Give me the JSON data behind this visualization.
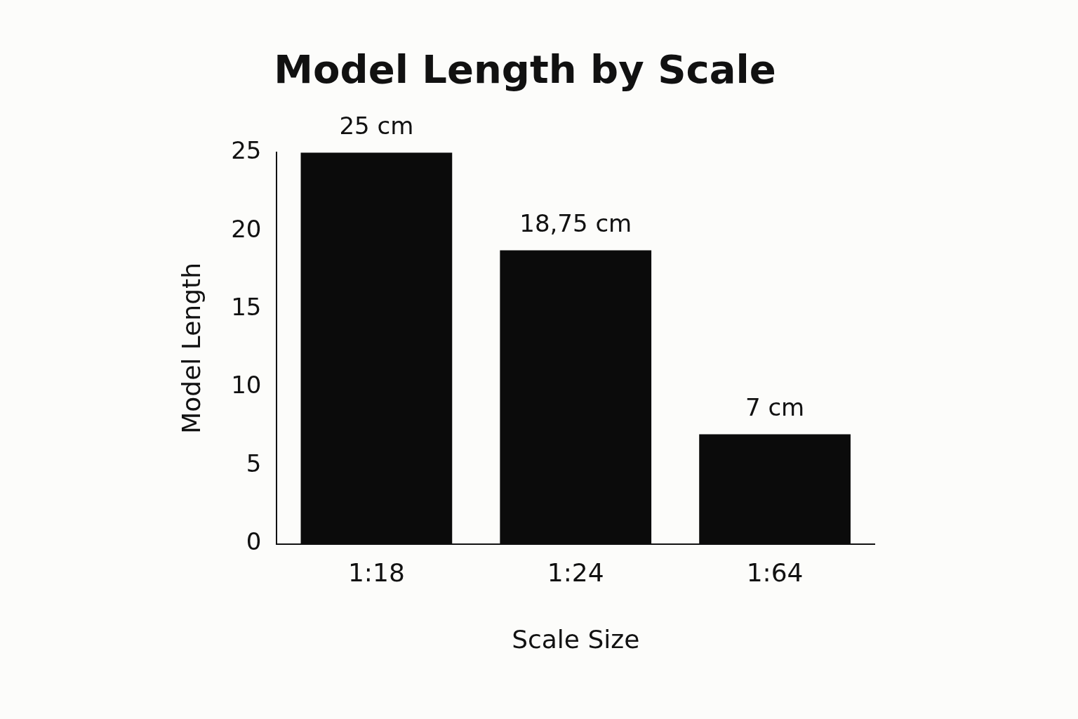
{
  "chart_data": {
    "type": "bar",
    "title": "Model Length by Scale",
    "xlabel": "Scale Size",
    "ylabel": "Model Length",
    "categories": [
      "1:18",
      "1:24",
      "1:64"
    ],
    "values": [
      25,
      18.75,
      7
    ],
    "value_labels": [
      "25 cm",
      "18,75 cm",
      "7 cm"
    ],
    "color": "#0b0b0b",
    "ylim": [
      0,
      25
    ],
    "yticks": [
      0,
      5,
      10,
      15,
      20,
      25
    ],
    "grid": false,
    "legend": false
  }
}
